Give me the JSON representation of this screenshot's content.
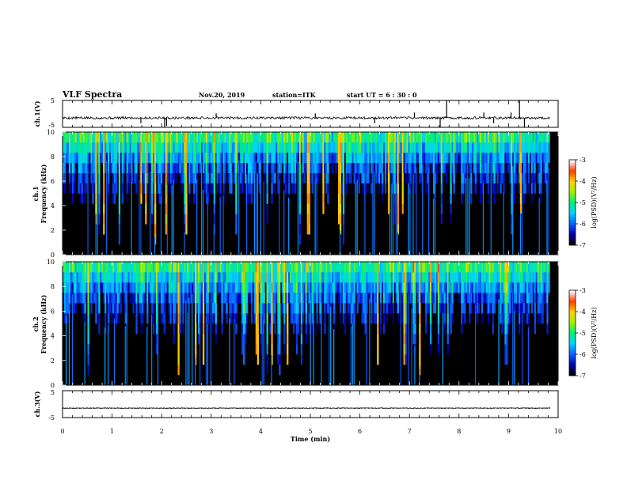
{
  "header": {
    "title": "VLF Spectra",
    "date": "Nov.20, 2019",
    "station": "station=ITK",
    "start": "start  UT =  6 : 30 : 0"
  },
  "chart_data": [
    {
      "type": "line",
      "ylabel": "ch.1(V)",
      "ylim": [
        -5,
        5
      ],
      "xlim": [
        0,
        10
      ],
      "yticks": [
        "5",
        "-5"
      ],
      "baseline": -1.5,
      "spikes": [
        {
          "x": 2.06,
          "y": -5
        },
        {
          "x": 2.1,
          "y": -4.5
        },
        {
          "x": 7.62,
          "y": -5
        },
        {
          "x": 7.75,
          "y": 5
        },
        {
          "x": 8.5,
          "y": 0.5
        },
        {
          "x": 9.22,
          "y": 5
        },
        {
          "x": 9.32,
          "y": -5
        },
        {
          "x": 1.58,
          "y": -3.5
        },
        {
          "x": 3.1,
          "y": 0.2
        },
        {
          "x": 5.1,
          "y": 0.2
        },
        {
          "x": 6.3,
          "y": -3.5
        },
        {
          "x": 7.1,
          "y": 0.5
        },
        {
          "x": 8.7,
          "y": -3.5
        },
        {
          "x": 9.05,
          "y": 0.5
        }
      ]
    },
    {
      "type": "heatmap",
      "ylabel": "Frequency (kHz)",
      "channel_label": "ch.1",
      "ylim": [
        0,
        10
      ],
      "xlim": [
        0,
        10
      ],
      "yticks": [
        "0",
        "2",
        "4",
        "6",
        "8",
        "10"
      ],
      "colorbar": {
        "label": "log(PSD)(V²/Hz)",
        "ticks": [
          "-3",
          "-4",
          "-5",
          "-6",
          "-7"
        ],
        "range": [
          -7,
          -3
        ]
      },
      "seed": 11
    },
    {
      "type": "heatmap",
      "ylabel": "Frequency (kHz)",
      "channel_label": "ch.2",
      "ylim": [
        0,
        10
      ],
      "xlim": [
        0,
        10
      ],
      "yticks": [
        "0",
        "2",
        "4",
        "6",
        "8",
        "10"
      ],
      "colorbar": {
        "label": "log(PSD)(V²/Hz)",
        "ticks": [
          "-3",
          "-4",
          "-5",
          "-6",
          "-7"
        ],
        "range": [
          -7,
          -3
        ]
      },
      "seed": 29
    },
    {
      "type": "line",
      "ylabel": "ch.3(V)",
      "ylim": [
        -5,
        5
      ],
      "xlim": [
        0,
        10
      ],
      "yticks": [
        "5",
        "-5"
      ],
      "baseline": -1.5,
      "spikes": []
    }
  ],
  "x_axis": {
    "label": "Time (min)",
    "ticks": [
      "0",
      "1",
      "2",
      "3",
      "4",
      "5",
      "6",
      "7",
      "8",
      "9",
      "10"
    ]
  },
  "colors": {
    "background": "#000000",
    "trace": "#000000",
    "colormap": [
      "#000000",
      "#0000b4",
      "#0a64ff",
      "#00d2ff",
      "#00f078",
      "#a0f000",
      "#ffd200",
      "#ff3c00",
      "#ffffff"
    ]
  }
}
